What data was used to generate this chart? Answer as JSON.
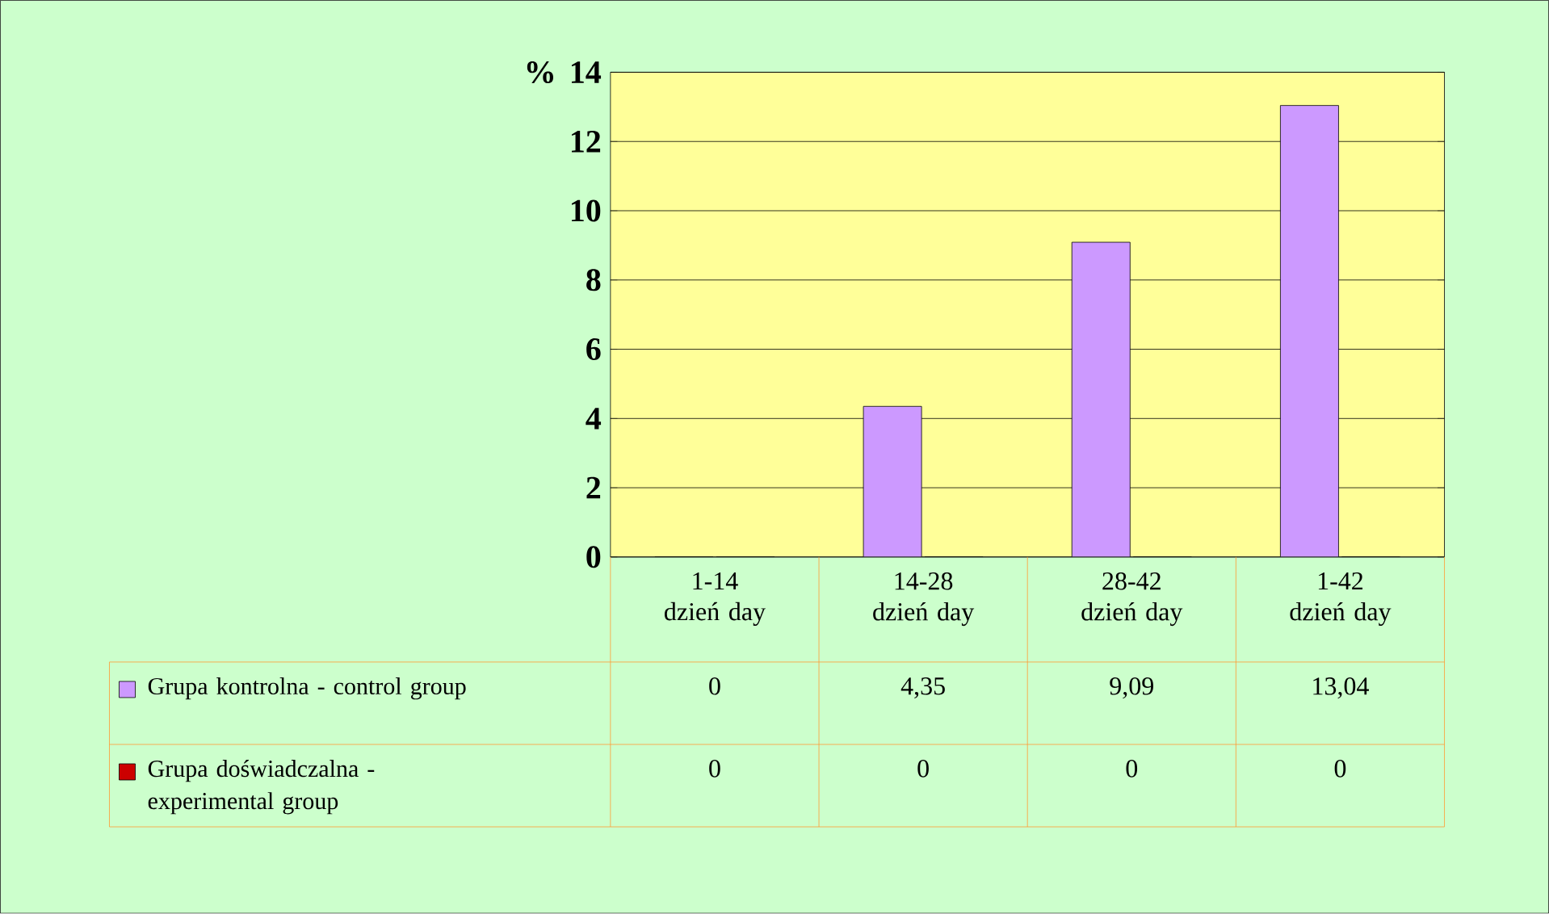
{
  "chart_data": {
    "type": "bar",
    "ylabel": "%",
    "categories": [
      "1-14 dzień day",
      "14-28 dzień day",
      "28-42 dzień day",
      "1-42 dzień day"
    ],
    "series": [
      {
        "name": "Grupa kontrolna - control group",
        "color": "#cc99ff",
        "values": [
          0,
          4.35,
          9.09,
          13.04
        ],
        "value_labels": [
          "0",
          "4,35",
          "9,09",
          "13,04"
        ]
      },
      {
        "name": "Grupa doświadczalna - experimental group",
        "color": "#cc0000",
        "values": [
          0,
          0,
          0,
          0
        ],
        "value_labels": [
          "0",
          "0",
          "0",
          "0"
        ]
      }
    ],
    "ylim": [
      0,
      14
    ],
    "yticks": [
      0,
      2,
      4,
      6,
      8,
      10,
      12,
      14
    ],
    "grid": "y",
    "legend": "bottom"
  }
}
